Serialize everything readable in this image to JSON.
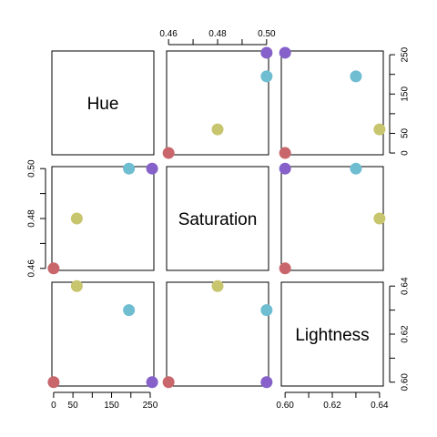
{
  "chart_data": {
    "type": "scatter-matrix",
    "variables": [
      {
        "name": "Hue",
        "lim": [
          -4.5,
          259.5
        ],
        "ticks": [
          0,
          50,
          100,
          150,
          200,
          250
        ],
        "tick_labels": [
          "0",
          "50",
          "",
          "150",
          "",
          "250"
        ]
      },
      {
        "name": "Saturation",
        "lim": [
          0.4592,
          0.5008
        ],
        "ticks": [
          0.46,
          0.47,
          0.48,
          0.49,
          0.5
        ],
        "tick_labels": [
          "0.46",
          "",
          "0.48",
          "",
          "0.50"
        ]
      },
      {
        "name": "Lightness",
        "lim": [
          0.5984,
          0.6416
        ],
        "ticks": [
          0.6,
          0.61,
          0.62,
          0.63,
          0.64
        ],
        "tick_labels": [
          "0.60",
          "",
          "0.62",
          "",
          "0.64"
        ]
      }
    ],
    "points": [
      {
        "hue": 0,
        "saturation": 0.46,
        "lightness": 0.6,
        "color": "#c9666b"
      },
      {
        "hue": 60,
        "saturation": 0.48,
        "lightness": 0.64,
        "color": "#c8c56f"
      },
      {
        "hue": 195,
        "saturation": 0.5,
        "lightness": 0.63,
        "color": "#6fbdd1"
      },
      {
        "hue": 255,
        "saturation": 0.5,
        "lightness": 0.6,
        "color": "#8561c9"
      }
    ],
    "axis_sides": {
      "top": [
        null,
        1,
        null
      ],
      "right": [
        0,
        null,
        2
      ],
      "left": [
        null,
        1,
        null
      ],
      "bottom": [
        0,
        null,
        2
      ]
    }
  }
}
